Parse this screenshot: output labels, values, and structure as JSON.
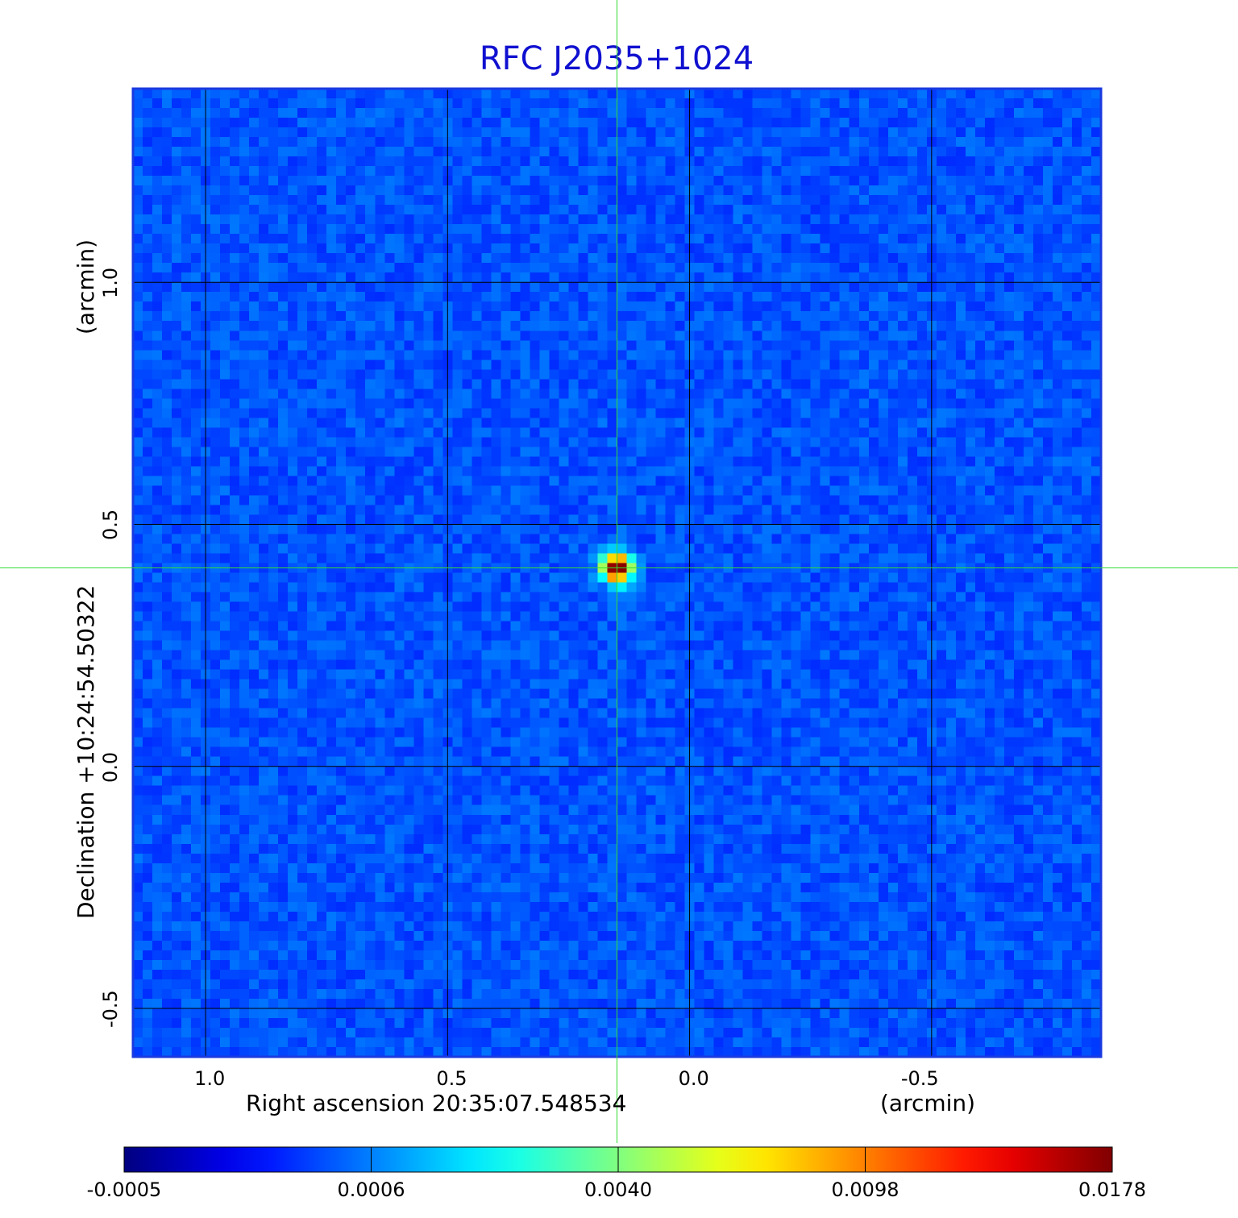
{
  "chart_data": {
    "type": "heatmap",
    "title": "RFC J2035+1024",
    "xlabel": "Right ascension  20:35:07.548534",
    "xunit": "(arcmin)",
    "ylabel": "Declination  +10:24:54.50322",
    "yunit": "(arcmin)",
    "xlim": [
      1.15,
      -0.85
    ],
    "ylim": [
      -0.6,
      1.4
    ],
    "x_ticks": [
      1.0,
      0.5,
      0.0,
      -0.5
    ],
    "x_tick_labels": [
      "1.0",
      "0.5",
      "0.0",
      "-0.5"
    ],
    "y_ticks": [
      -0.5,
      0.0,
      0.5,
      1.0
    ],
    "y_tick_labels": [
      "-0.5",
      "0.0",
      "0.5",
      "1.0"
    ],
    "grid": true,
    "crosshair": {
      "x": 0.15,
      "y": 0.41,
      "color": "#33dd33"
    },
    "source": {
      "x": 0.15,
      "y": 0.41,
      "peak": 0.0178
    },
    "colormap": "jet",
    "colorbar_ticks": [
      "-0.0005",
      "0.0006",
      "0.0040",
      "0.0098",
      "0.0178"
    ],
    "colorbar_positions": [
      0.0,
      0.25,
      0.5,
      0.75,
      1.0
    ]
  }
}
